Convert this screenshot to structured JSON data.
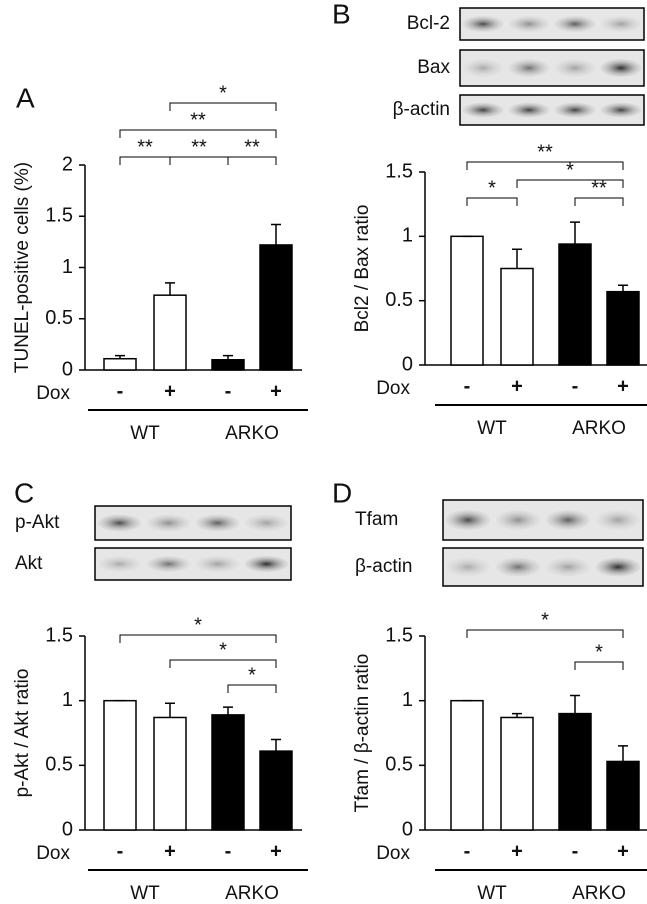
{
  "chart_data": [
    {
      "type": "bar",
      "panel": "A",
      "blots": [],
      "ylabel": "TUNEL-positive cells (%)",
      "row_label": "Dox",
      "categories": [
        "-",
        "+",
        "-",
        "+"
      ],
      "groups": [
        "WT",
        "ARKO"
      ],
      "values": [
        0.11,
        0.73,
        0.1,
        1.22
      ],
      "errors": [
        0.03,
        0.12,
        0.04,
        0.2
      ],
      "colors": [
        "#ffffff",
        "#ffffff",
        "#000000",
        "#000000"
      ],
      "ylim": [
        0,
        2
      ],
      "yticks": [
        0,
        0.5,
        1,
        1.5,
        2
      ],
      "significance": [
        {
          "from": 0,
          "to": 1,
          "label": "**"
        },
        {
          "from": 1,
          "to": 2,
          "label": "**"
        },
        {
          "from": 2,
          "to": 3,
          "label": "**"
        },
        {
          "from": 0,
          "to": 3,
          "label": "**"
        },
        {
          "from": 1,
          "to": 3,
          "label": "*"
        }
      ]
    },
    {
      "type": "bar",
      "panel": "B",
      "blots": [
        "Bcl-2",
        "Bax",
        "β-actin"
      ],
      "ylabel": "Bcl2 / Bax ratio",
      "row_label": "Dox",
      "categories": [
        "-",
        "+",
        "-",
        "+"
      ],
      "groups": [
        "WT",
        "ARKO"
      ],
      "values": [
        1.0,
        0.75,
        0.94,
        0.57
      ],
      "errors": [
        0,
        0.15,
        0.17,
        0.05
      ],
      "colors": [
        "#ffffff",
        "#ffffff",
        "#000000",
        "#000000"
      ],
      "ylim": [
        0,
        1.5
      ],
      "yticks": [
        0,
        0.5,
        1,
        1.5
      ],
      "significance": [
        {
          "from": 0,
          "to": 1,
          "label": "*"
        },
        {
          "from": 2,
          "to": 3,
          "label": "**"
        },
        {
          "from": 1,
          "to": 3,
          "label": "*"
        },
        {
          "from": 0,
          "to": 3,
          "label": "**"
        }
      ]
    },
    {
      "type": "bar",
      "panel": "C",
      "blots": [
        "p-Akt",
        "Akt"
      ],
      "ylabel": "p-Akt / Akt ratio",
      "row_label": "Dox",
      "categories": [
        "-",
        "+",
        "-",
        "+"
      ],
      "groups": [
        "WT",
        "ARKO"
      ],
      "values": [
        1.0,
        0.87,
        0.89,
        0.61
      ],
      "errors": [
        0,
        0.11,
        0.06,
        0.09
      ],
      "colors": [
        "#ffffff",
        "#ffffff",
        "#000000",
        "#000000"
      ],
      "ylim": [
        0,
        1.5
      ],
      "yticks": [
        0,
        0.5,
        1,
        1.5
      ],
      "significance": [
        {
          "from": 2,
          "to": 3,
          "label": "*"
        },
        {
          "from": 1,
          "to": 3,
          "label": "*"
        },
        {
          "from": 0,
          "to": 3,
          "label": "*"
        }
      ]
    },
    {
      "type": "bar",
      "panel": "D",
      "blots": [
        "Tfam",
        "β-actin"
      ],
      "ylabel": "Tfam / β-actin ratio",
      "row_label": "Dox",
      "categories": [
        "-",
        "+",
        "-",
        "+"
      ],
      "groups": [
        "WT",
        "ARKO"
      ],
      "values": [
        1.0,
        0.87,
        0.9,
        0.53
      ],
      "errors": [
        0,
        0.03,
        0.14,
        0.12
      ],
      "colors": [
        "#ffffff",
        "#ffffff",
        "#000000",
        "#000000"
      ],
      "ylim": [
        0,
        1.5
      ],
      "yticks": [
        0,
        0.5,
        1,
        1.5
      ],
      "significance": [
        {
          "from": 2,
          "to": 3,
          "label": "*"
        },
        {
          "from": 0,
          "to": 3,
          "label": "*"
        }
      ]
    }
  ]
}
